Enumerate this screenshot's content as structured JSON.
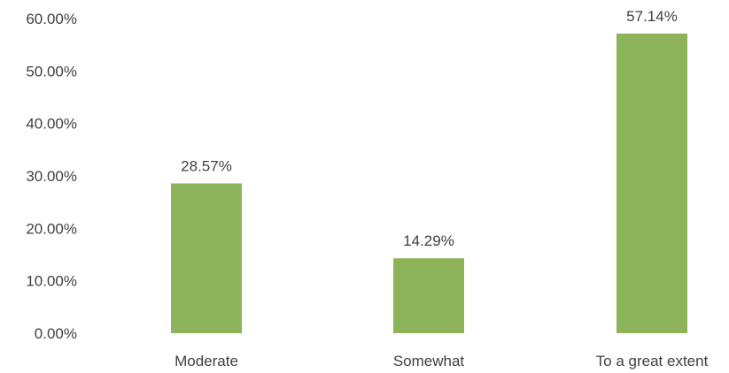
{
  "chart_data": {
    "type": "bar",
    "categories": [
      "Moderate",
      "Somewhat",
      "To a great extent"
    ],
    "values": [
      28.57,
      14.29,
      57.14
    ],
    "data_labels": [
      "28.57%",
      "14.29%",
      "57.14%"
    ],
    "y_ticks": [
      0,
      10,
      20,
      30,
      40,
      50,
      60
    ],
    "y_tick_labels": [
      "0.00%",
      "10.00%",
      "20.00%",
      "30.00%",
      "40.00%",
      "50.00%",
      "60.00%"
    ],
    "ylim": [
      0,
      60
    ],
    "title": "",
    "xlabel": "",
    "ylabel": "",
    "grid": false,
    "legend": "none",
    "bar_color": "#8db45a"
  }
}
